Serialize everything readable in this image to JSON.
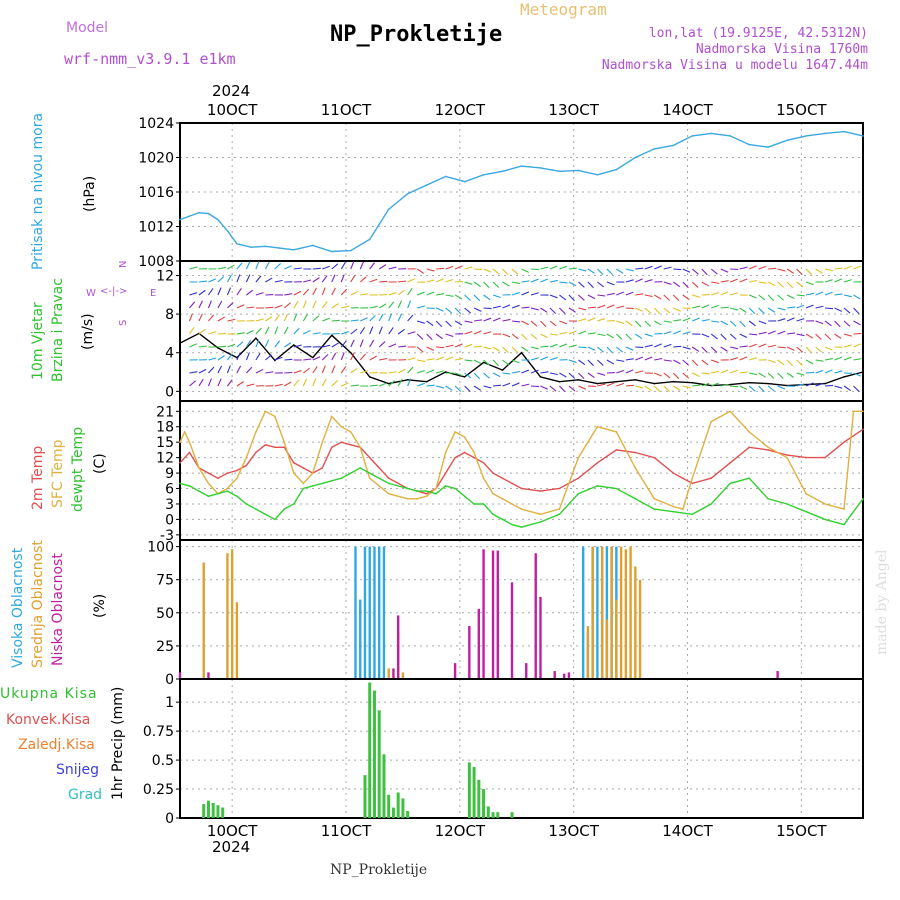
{
  "header": {
    "model_label": "Model",
    "model_name": "wrf-nmm_v3.9.1 e1km",
    "meteogram_label": "Meteogram",
    "station": "NP_Prokletije",
    "lonlat": "lon,lat (19.9125E, 42.5312N)",
    "elevation": "Nadmorska Visina 1760m",
    "model_elevation": "Nadmorska Visina u modelu 1647.44m"
  },
  "footer": {
    "station": "NP_Prokletije",
    "credit": "made by Angel"
  },
  "colors": {
    "pressure": "#3aa8e0",
    "temp2m": "#e05050",
    "sfc": "#e0b040",
    "dewpt": "#30d030",
    "high": "#30a8e0",
    "mid": "#e0a030",
    "low": "#c020a0",
    "precip": "#40c040"
  },
  "chart_data": {
    "type": "line",
    "date_axis": {
      "top_labels": [
        "10OCT",
        "11OCT",
        "12OCT",
        "13OCT",
        "14OCT",
        "15OCT"
      ],
      "top_year": "2024",
      "bottom_labels": [
        "10OCT",
        "11OCT",
        "12OCT",
        "13OCT",
        "14OCT",
        "15OCT"
      ],
      "bottom_year": "2024",
      "x_range": [
        "2024-10-09T13:00",
        "2024-10-15T13:00"
      ]
    },
    "panels": [
      {
        "id": "pressure",
        "type": "line",
        "ylabel_lines": [
          "Pritisak na nivou mora",
          "(hPa)"
        ],
        "ylim": [
          1008,
          1024
        ],
        "yticks": [
          1008,
          1012,
          1016,
          1020,
          1024
        ],
        "series": [
          {
            "x": [
              0,
              2,
              4,
              6,
              8,
              10,
              12,
              15,
              18,
              21,
              24,
              28,
              32,
              36,
              40,
              44,
              48,
              52,
              56,
              60,
              64,
              68,
              72,
              76,
              80,
              84,
              88,
              92,
              96,
              100,
              104,
              108,
              112,
              116,
              120,
              124,
              128,
              132,
              136,
              140,
              144
            ],
            "values": [
              1012.8,
              1013.2,
              1013.6,
              1013.5,
              1012.8,
              1011.5,
              1010.0,
              1009.6,
              1009.7,
              1009.5,
              1009.3,
              1009.8,
              1009.1,
              1009.2,
              1010.5,
              1014.0,
              1015.8,
              1016.8,
              1017.8,
              1017.2,
              1018.0,
              1018.4,
              1019.0,
              1018.8,
              1018.4,
              1018.5,
              1018.0,
              1018.6,
              1020.0,
              1021.0,
              1021.4,
              1022.5,
              1022.8,
              1022.5,
              1021.5,
              1021.2,
              1022.0,
              1022.5,
              1022.8,
              1023.0,
              1022.5
            ]
          }
        ]
      },
      {
        "id": "wind",
        "type": "line",
        "ylabel_lines": [
          "10m Vjetar",
          "Brzina i Pravac",
          "(m/s)"
        ],
        "compass": {
          "n": "N",
          "w": "W",
          "e": "E",
          "s": "S"
        },
        "ylim": [
          -1,
          13.5
        ],
        "yticks": [
          0,
          4,
          8,
          12
        ],
        "series": [
          {
            "x": [
              0,
              4,
              8,
              12,
              16,
              20,
              24,
              28,
              32,
              36,
              40,
              44,
              48,
              52,
              56,
              60,
              64,
              68,
              72,
              76,
              80,
              84,
              88,
              92,
              96,
              100,
              104,
              108,
              112,
              116,
              120,
              124,
              128,
              132,
              136,
              140,
              144
            ],
            "values": [
              5.0,
              6.0,
              4.5,
              3.5,
              5.5,
              3.2,
              4.8,
              3.5,
              5.8,
              4.0,
              1.5,
              0.8,
              1.2,
              1.0,
              2.0,
              1.5,
              3.0,
              2.2,
              4.0,
              1.5,
              1.0,
              1.2,
              0.8,
              1.0,
              1.2,
              0.8,
              1.0,
              0.9,
              0.6,
              0.7,
              0.9,
              0.8,
              0.6,
              0.7,
              0.8,
              1.5,
              2.0
            ]
          }
        ]
      },
      {
        "id": "temperature",
        "type": "line",
        "ylabel_lines": [
          "2m Temp",
          "SFC Temp",
          "dewpt Temp",
          "(C)"
        ],
        "ylim": [
          -4,
          23
        ],
        "yticks": [
          -3,
          0,
          3,
          6,
          9,
          12,
          15,
          18,
          21
        ],
        "series": [
          {
            "name": "2m Temp",
            "x": [
              0,
              2,
              4,
              6,
              8,
              10,
              12,
              14,
              16,
              18,
              20,
              22,
              24,
              26,
              28,
              30,
              32,
              34,
              36,
              38,
              40,
              44,
              48,
              50,
              52,
              54,
              56,
              58,
              60,
              62,
              64,
              66,
              68,
              70,
              72,
              76,
              80,
              84,
              88,
              92,
              96,
              100,
              104,
              106,
              108,
              112,
              116,
              120,
              124,
              128,
              132,
              136,
              140,
              144
            ],
            "values": [
              11,
              13,
              10,
              9,
              8,
              9,
              9.5,
              10.5,
              13,
              14.5,
              14,
              14,
              11,
              10,
              9,
              10,
              14,
              15,
              14.5,
              14,
              12,
              8,
              6,
              5.5,
              5,
              6,
              9,
              12,
              13,
              12,
              11,
              9,
              8,
              7,
              6,
              5.5,
              6,
              8,
              11,
              13.5,
              13,
              12,
              9,
              8,
              7,
              8,
              11,
              14,
              13.5,
              12.5,
              12,
              12,
              15,
              17.5
            ]
          },
          {
            "name": "SFC Temp",
            "x": [
              0,
              1,
              2,
              4,
              6,
              8,
              10,
              12,
              14,
              16,
              18,
              20,
              22,
              24,
              26,
              28,
              30,
              32,
              34,
              36,
              38,
              40,
              44,
              48,
              50,
              52,
              54,
              56,
              58,
              60,
              62,
              64,
              66,
              68,
              70,
              72,
              76,
              80,
              84,
              88,
              92,
              96,
              100,
              104,
              106,
              108,
              112,
              116,
              120,
              124,
              128,
              132,
              136,
              140,
              142,
              144
            ],
            "values": [
              15,
              17,
              15,
              10,
              7,
              5,
              6,
              8,
              12,
              17,
              21,
              20,
              15,
              9,
              7,
              9,
              15,
              20,
              18,
              17,
              14,
              8,
              5,
              4,
              4,
              4.5,
              6,
              13,
              17,
              16,
              13,
              8,
              5,
              4,
              3,
              2,
              1,
              2,
              12,
              18,
              17,
              10,
              4,
              2.5,
              2,
              8,
              19,
              21,
              17,
              14,
              12,
              5,
              3,
              2,
              21,
              21
            ]
          },
          {
            "name": "dewpt Temp",
            "x": [
              0,
              2,
              4,
              6,
              8,
              10,
              12,
              14,
              16,
              18,
              20,
              22,
              24,
              26,
              28,
              30,
              32,
              34,
              36,
              38,
              40,
              44,
              48,
              50,
              52,
              54,
              56,
              58,
              60,
              62,
              64,
              66,
              68,
              70,
              72,
              76,
              80,
              84,
              88,
              92,
              96,
              100,
              104,
              108,
              112,
              116,
              120,
              124,
              128,
              132,
              136,
              140,
              144
            ],
            "values": [
              7,
              6.5,
              5.5,
              4.5,
              5,
              5.5,
              4.5,
              3,
              2,
              1,
              0,
              2,
              3,
              6,
              6.5,
              7,
              7.5,
              8,
              9,
              10,
              9,
              7,
              6,
              5.5,
              5.5,
              5,
              6.5,
              6,
              4.5,
              3,
              3,
              1,
              0,
              -1,
              -1.5,
              -0.5,
              1,
              5,
              6.5,
              6,
              4,
              2,
              1.5,
              1,
              3,
              7,
              8,
              4,
              3,
              1.5,
              0,
              -1,
              4
            ]
          }
        ]
      },
      {
        "id": "cloud",
        "type": "bar",
        "ylabel_lines": [
          "Visoka Oblacnost",
          "Srednja Oblacnost",
          "Niska Oblacnost",
          "(%)"
        ],
        "ylim": [
          0,
          105
        ],
        "yticks": [
          0,
          25,
          50,
          75,
          100
        ],
        "series": [
          {
            "name": "Visoka Oblacnost",
            "x": [
              37,
              38,
              39,
              40,
              41,
              42,
              43,
              85,
              86,
              87,
              88,
              89,
              90,
              91,
              92
            ],
            "values": [
              100,
              60,
              100,
              100,
              100,
              100,
              100,
              100,
              35,
              100,
              100,
              100,
              100,
              100,
              100
            ]
          },
          {
            "name": "Srednja Oblacnost",
            "x": [
              5,
              10,
              11,
              12,
              44,
              46,
              47,
              86,
              87,
              89,
              90,
              91,
              92,
              93,
              94,
              95,
              96,
              97
            ],
            "values": [
              88,
              95,
              98,
              58,
              8,
              35,
              5,
              40,
              100,
              100,
              45,
              100,
              60,
              100,
              98,
              100,
              85,
              75
            ]
          },
          {
            "name": "Niska Oblacnost",
            "x": [
              0,
              6,
              46,
              45,
              58,
              61,
              63,
              64,
              66,
              67,
              70,
              73,
              75,
              76,
              79,
              81,
              82,
              126
            ],
            "values": [
              5,
              5,
              48,
              8,
              12,
              40,
              53,
              98,
              97,
              97,
              73,
              12,
              95,
              62,
              6,
              4,
              5,
              6
            ]
          }
        ]
      },
      {
        "id": "precip",
        "type": "bar",
        "ylabel_lines": [
          "1hr Precip (mm)"
        ],
        "legend": [
          "Ukupna Kisa",
          "Konvek.Kisa",
          "Zaledj.Kisa",
          "Snijeg",
          "Grad"
        ],
        "ylim": [
          0,
          1.2
        ],
        "yticks": [
          0,
          0.25,
          0.5,
          0.75,
          1
        ],
        "series": [
          {
            "name": "Ukupna Kisa",
            "x": [
              5,
              6,
              7,
              8,
              9,
              39,
              40,
              41,
              42,
              43,
              44,
              45,
              46,
              47,
              48,
              61,
              62,
              63,
              64,
              65,
              66,
              67,
              70
            ],
            "values": [
              0.12,
              0.15,
              0.13,
              0.11,
              0.09,
              0.37,
              1.17,
              1.1,
              0.93,
              0.55,
              0.2,
              0.09,
              0.22,
              0.17,
              0.06,
              0.48,
              0.44,
              0.33,
              0.25,
              0.1,
              0.05,
              0.05,
              0.05
            ]
          }
        ]
      }
    ]
  }
}
